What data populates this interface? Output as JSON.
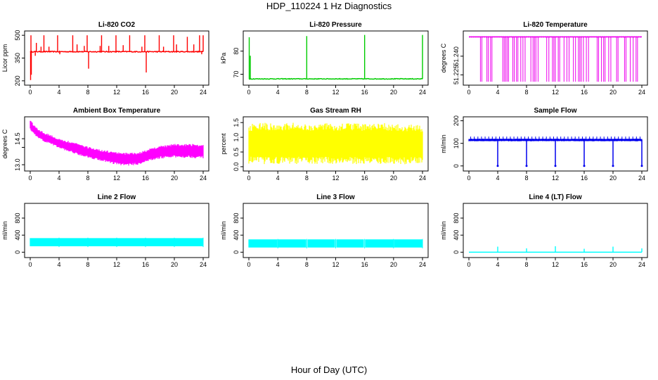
{
  "main_title": "HDP_110224  1 Hz Diagnostics",
  "x_outer_label": "Hour of Day (UTC)",
  "chart_data": [
    {
      "type": "line",
      "title": "Li-820 CO2",
      "ylabel": "Licor ppm",
      "xlim": [
        0,
        24
      ],
      "x_ticks": [
        "0",
        "4",
        "8",
        "12",
        "16",
        "20",
        "24"
      ],
      "ylim": [
        190,
        510
      ],
      "y_ticks": [
        200,
        350,
        500
      ],
      "y_tick_labels": [
        "200",
        "350",
        "500"
      ],
      "color": "#ff0000",
      "baseline": 392,
      "noise": 3,
      "spikes": [
        {
          "x": 0.05,
          "y": 205
        },
        {
          "x": 0.1,
          "y": 500
        },
        {
          "x": 0.15,
          "y": 240
        },
        {
          "x": 0.7,
          "y": 365
        },
        {
          "x": 0.85,
          "y": 450
        },
        {
          "x": 1.5,
          "y": 425
        },
        {
          "x": 1.9,
          "y": 500
        },
        {
          "x": 2.6,
          "y": 425
        },
        {
          "x": 3.8,
          "y": 500
        },
        {
          "x": 4.1,
          "y": 375
        },
        {
          "x": 5.9,
          "y": 500
        },
        {
          "x": 6.5,
          "y": 440
        },
        {
          "x": 7.5,
          "y": 430
        },
        {
          "x": 7.9,
          "y": 500
        },
        {
          "x": 8.1,
          "y": 280
        },
        {
          "x": 9.7,
          "y": 430
        },
        {
          "x": 9.9,
          "y": 500
        },
        {
          "x": 10.9,
          "y": 430
        },
        {
          "x": 11.9,
          "y": 500
        },
        {
          "x": 12.9,
          "y": 435
        },
        {
          "x": 13.8,
          "y": 500
        },
        {
          "x": 15.5,
          "y": 425
        },
        {
          "x": 15.9,
          "y": 500
        },
        {
          "x": 16.1,
          "y": 255
        },
        {
          "x": 17.9,
          "y": 500
        },
        {
          "x": 18.5,
          "y": 425
        },
        {
          "x": 19.9,
          "y": 500
        },
        {
          "x": 20.3,
          "y": 440
        },
        {
          "x": 21.8,
          "y": 490
        },
        {
          "x": 22.7,
          "y": 440
        },
        {
          "x": 23.5,
          "y": 500
        },
        {
          "x": 23.8,
          "y": 375
        },
        {
          "x": 24.0,
          "y": 500
        }
      ]
    },
    {
      "type": "line",
      "title": "Li-820 Pressure",
      "ylabel": "kPa",
      "xlim": [
        0,
        24
      ],
      "x_ticks": [
        "0",
        "4",
        "8",
        "12",
        "16",
        "20",
        "24"
      ],
      "ylim": [
        66.5,
        87.5
      ],
      "y_ticks": [
        70,
        80
      ],
      "y_tick_labels": [
        "70",
        "80"
      ],
      "color": "#00cc00",
      "baseline": 68,
      "noise": 0.15,
      "spikes": [
        {
          "x": 0.05,
          "y": 86
        },
        {
          "x": 0.2,
          "y": 78
        },
        {
          "x": 8.0,
          "y": 86.5
        },
        {
          "x": 16.0,
          "y": 87
        },
        {
          "x": 24.0,
          "y": 87
        }
      ]
    },
    {
      "type": "line",
      "title": "Li-820 Temperature",
      "ylabel": "degrees C",
      "xlim": [
        0,
        24
      ],
      "x_ticks": [
        "0",
        "4",
        "8",
        "12",
        "16",
        "20",
        "24"
      ],
      "ylim": [
        51.219,
        51.258
      ],
      "y_ticks": [
        51.225,
        51.24
      ],
      "y_tick_labels": [
        "51.225",
        "51.240"
      ],
      "color": "#ee00ee",
      "baseline": 51.2555,
      "noise": 0,
      "dips_to": 51.2195,
      "dips": [
        1.6,
        1.8,
        2.5,
        2.7,
        3.0,
        3.2,
        4.7,
        4.9,
        5.1,
        5.3,
        5.5,
        6.1,
        6.3,
        6.6,
        6.8,
        7.2,
        7.5,
        7.8,
        8.6,
        8.9,
        9.1,
        9.3,
        9.6,
        10.8,
        11.1,
        11.6,
        11.8,
        12.0,
        12.4,
        12.6,
        13.2,
        13.6,
        13.9,
        14.5,
        14.8,
        15.2,
        15.4,
        15.6,
        15.9,
        16.3,
        16.6,
        17.8,
        18.0,
        18.4,
        18.7,
        18.9,
        19.4,
        19.7,
        20.5,
        20.7,
        21.6,
        21.8,
        22.4,
        22.8,
        23.2,
        23.4
      ]
    },
    {
      "type": "band",
      "title": "Ambient Box Temperature",
      "ylabel": "degrees C",
      "xlim": [
        0,
        24
      ],
      "x_ticks": [
        "0",
        "4",
        "8",
        "12",
        "16",
        "20",
        "24"
      ],
      "ylim": [
        12.8,
        15.6
      ],
      "y_ticks": [
        13.0,
        14.0,
        14.5
      ],
      "y_tick_labels": [
        "13.0",
        "",
        "14.5"
      ],
      "color": "#ff00ff",
      "x": [
        0,
        0.5,
        1,
        2,
        3,
        4,
        6,
        8,
        10,
        12,
        13,
        14,
        15,
        16,
        18,
        20,
        22,
        24
      ],
      "upper": [
        15.6,
        15.3,
        15.1,
        14.85,
        14.7,
        14.5,
        14.3,
        14.05,
        13.85,
        13.75,
        13.7,
        13.72,
        13.7,
        13.85,
        14.1,
        14.2,
        14.22,
        14.2
      ],
      "lower": [
        15.0,
        14.75,
        14.55,
        14.3,
        14.15,
        13.95,
        13.65,
        13.4,
        13.2,
        13.0,
        12.95,
        12.95,
        13.0,
        13.15,
        13.35,
        13.4,
        13.4,
        13.35
      ]
    },
    {
      "type": "band",
      "title": "Gas Stream RH",
      "ylabel": "percent",
      "xlim": [
        0,
        24
      ],
      "x_ticks": [
        "0",
        "4",
        "8",
        "12",
        "16",
        "20",
        "24"
      ],
      "ylim": [
        -0.05,
        1.6
      ],
      "y_ticks": [
        0.0,
        0.5,
        1.0,
        1.5
      ],
      "y_tick_labels": [
        "0.0",
        "0.5",
        "1.0",
        "1.5"
      ],
      "color": "#ffff00",
      "x": [
        0,
        2,
        4,
        6,
        8,
        10,
        12,
        14,
        16,
        18,
        20,
        22,
        24
      ],
      "upper": [
        1.45,
        1.5,
        1.45,
        1.5,
        1.45,
        1.5,
        1.45,
        1.5,
        1.45,
        1.5,
        1.45,
        1.45,
        1.4
      ],
      "lower": [
        0.1,
        0.08,
        0.1,
        0.08,
        0.1,
        0.08,
        0.1,
        0.08,
        0.1,
        0.08,
        0.1,
        0.08,
        0.1
      ]
    },
    {
      "type": "step",
      "title": "Sample Flow",
      "ylabel": "ml/min",
      "xlim": [
        0,
        24
      ],
      "x_ticks": [
        "0",
        "4",
        "8",
        "12",
        "16",
        "20",
        "24"
      ],
      "ylim": [
        -10,
        205
      ],
      "y_ticks": [
        0,
        100,
        200
      ],
      "y_tick_labels": [
        "0",
        "100",
        "200"
      ],
      "color": "#0000ee",
      "baseline": 115,
      "band": 12,
      "drops": [
        4.0,
        8.0,
        12.0,
        16.0,
        20.0,
        24.0
      ],
      "drop_to": 0,
      "ticks_up": 130
    },
    {
      "type": "band",
      "title": "Line 2 Flow",
      "ylabel": "ml/min",
      "xlim": [
        0,
        24
      ],
      "x_ticks": [
        "0",
        "4",
        "8",
        "12",
        "16",
        "20",
        "24"
      ],
      "ylim": [
        -60,
        1080
      ],
      "y_ticks": [
        0,
        400,
        800
      ],
      "y_tick_labels": [
        "0",
        "400",
        "800"
      ],
      "color": "#00ffff",
      "x": [
        0,
        24
      ],
      "upper": [
        330,
        330
      ],
      "lower": [
        140,
        140
      ],
      "gaps": [
        4.0,
        8.0,
        12.0,
        16.0,
        20.0,
        24.0
      ]
    },
    {
      "type": "band",
      "title": "Line 3 Flow",
      "ylabel": "ml/min",
      "xlim": [
        0,
        24
      ],
      "x_ticks": [
        "0",
        "4",
        "8",
        "12",
        "16",
        "20",
        "24"
      ],
      "ylim": [
        -60,
        1080
      ],
      "y_ticks": [
        0,
        400,
        800
      ],
      "y_tick_labels": [
        "0",
        "400",
        "800"
      ],
      "color": "#00ffff",
      "x": [
        0,
        24
      ],
      "upper": [
        300,
        300
      ],
      "lower": [
        110,
        110
      ],
      "gaps": [
        4.0,
        8.0,
        12.0,
        16.0,
        20.0,
        24.0
      ]
    },
    {
      "type": "line",
      "title": "Line 4 (LT) Flow",
      "ylabel": "ml/min",
      "xlim": [
        0,
        24
      ],
      "x_ticks": [
        "0",
        "4",
        "8",
        "12",
        "16",
        "20",
        "24"
      ],
      "ylim": [
        -60,
        1080
      ],
      "y_ticks": [
        0,
        400,
        800
      ],
      "y_tick_labels": [
        "0",
        "400",
        "800"
      ],
      "color": "#00ffff",
      "baseline": 0,
      "noise": 0,
      "spikes": [
        {
          "x": 4.0,
          "y": 130
        },
        {
          "x": 8.0,
          "y": 90
        },
        {
          "x": 12.0,
          "y": 140
        },
        {
          "x": 16.0,
          "y": 80
        },
        {
          "x": 20.0,
          "y": 130
        },
        {
          "x": 24.0,
          "y": 90
        }
      ]
    }
  ]
}
